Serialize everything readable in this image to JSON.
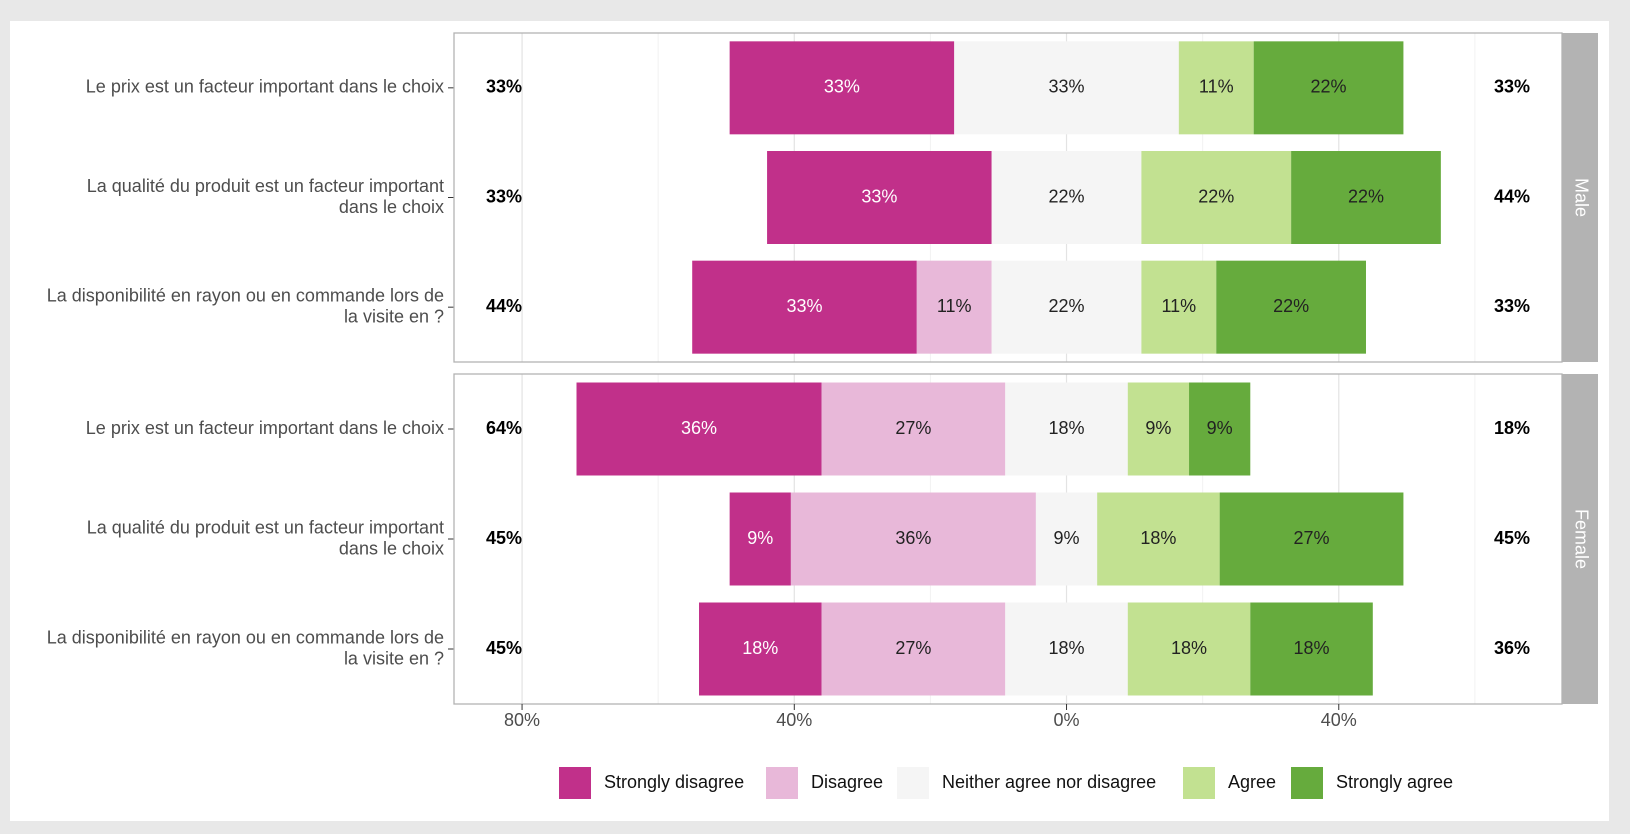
{
  "chart_data": {
    "type": "likert",
    "levels": [
      {
        "name": "Strongly disagree",
        "color": "#c1308a",
        "text_color": "#ffffff"
      },
      {
        "name": "Disagree",
        "color": "#e8b8d9",
        "text_color": "#222222"
      },
      {
        "name": "Neither agree nor disagree",
        "color": "#f5f5f5",
        "text_color": "#222222"
      },
      {
        "name": "Agree",
        "color": "#c2e191",
        "text_color": "#222222"
      },
      {
        "name": "Strongly agree",
        "color": "#66ab3d",
        "text_color": "#222222"
      }
    ],
    "panels": [
      {
        "label": "Male",
        "categories": [
          [
            "Le prix est un facteur important dans le choix"
          ],
          [
            "La qualité du produit est un facteur important",
            "dans le choix"
          ],
          [
            "La disponibilité en rayon ou en commande lors de",
            "la visite en ?"
          ]
        ],
        "values": [
          [
            33,
            null,
            33,
            11,
            22
          ],
          [
            33,
            null,
            22,
            22,
            22
          ],
          [
            33,
            11,
            22,
            11,
            22
          ]
        ],
        "value_labels": [
          [
            "33%",
            null,
            "33%",
            "11%",
            "22%"
          ],
          [
            "33%",
            null,
            "22%",
            "22%",
            "22%"
          ],
          [
            "33%",
            "11%",
            "22%",
            "11%",
            "22%"
          ]
        ],
        "left_totals": [
          33,
          33,
          44
        ],
        "left_total_labels": [
          "33%",
          "33%",
          "44%"
        ],
        "right_totals": [
          33,
          44,
          33
        ],
        "right_total_labels": [
          "33%",
          "44%",
          "33%"
        ]
      },
      {
        "label": "Female",
        "categories": [
          [
            "Le prix est un facteur important dans le choix"
          ],
          [
            "La qualité du produit est un facteur important",
            "dans le choix"
          ],
          [
            "La disponibilité en rayon ou en commande lors de",
            "la visite en ?"
          ]
        ],
        "values": [
          [
            36,
            27,
            18,
            9,
            9
          ],
          [
            9,
            36,
            9,
            18,
            27
          ],
          [
            18,
            27,
            18,
            18,
            18
          ]
        ],
        "value_labels": [
          [
            "36%",
            "27%",
            "18%",
            "9%",
            "9%"
          ],
          [
            "9%",
            "36%",
            "9%",
            "18%",
            "27%"
          ],
          [
            "18%",
            "27%",
            "18%",
            "18%",
            "18%"
          ]
        ],
        "left_totals": [
          64,
          45,
          45
        ],
        "left_total_labels": [
          "64%",
          "45%",
          "45%"
        ],
        "right_totals": [
          18,
          45,
          36
        ],
        "right_total_labels": [
          "18%",
          "45%",
          "36%"
        ]
      }
    ],
    "xlim": [
      -90,
      72.8
    ],
    "xticks": [
      {
        "value": -80,
        "label": "80%"
      },
      {
        "value": -40,
        "label": "40%"
      },
      {
        "value": 0,
        "label": "0%"
      },
      {
        "value": 40,
        "label": "40%"
      }
    ],
    "minor_xticks": [
      -60,
      -20,
      20,
      60
    ],
    "grid": true,
    "legend": "bottom"
  }
}
